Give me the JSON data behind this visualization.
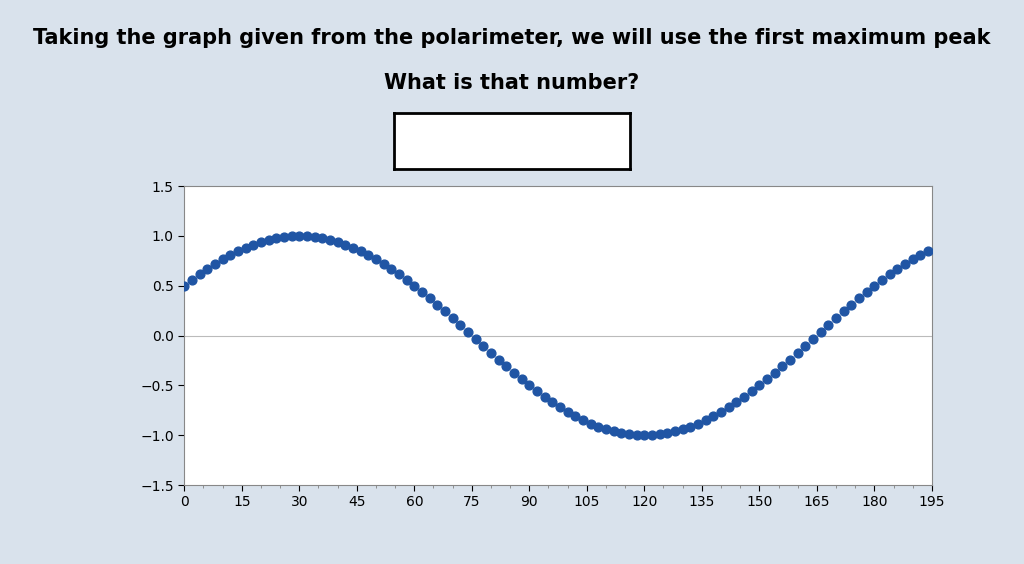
{
  "title_line1": "Taking the graph given from the polarimeter, we will use the first maximum peak",
  "title_line2": "What is that number?",
  "x_start": 0,
  "x_end": 195,
  "x_step": 2,
  "dot_color": "#2055a4",
  "dot_size": 40,
  "ylim": [
    -1.5,
    1.5
  ],
  "xlim": [
    0,
    195
  ],
  "yticks": [
    -1.5,
    -1,
    -0.5,
    0,
    0.5,
    1,
    1.5
  ],
  "xticks": [
    0,
    15,
    30,
    45,
    60,
    75,
    90,
    105,
    120,
    135,
    150,
    165,
    180,
    195
  ],
  "figure_bg": "#d9e2ec",
  "plot_bg": "#ffffff",
  "title_fontsize": 15,
  "axis_fontsize": 10,
  "period": 180,
  "phase_rad": 0.5236
}
